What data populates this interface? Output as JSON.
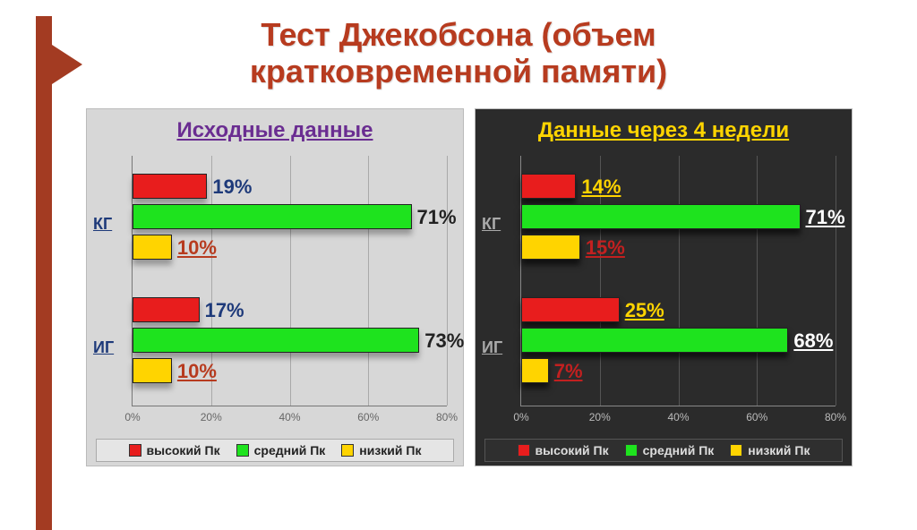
{
  "title_line1": "Тест Джекобсона (объем",
  "title_line2": "кратковременной памяти)",
  "accent_color": "#a33b22",
  "xaxis": {
    "min": 0,
    "max": 80,
    "step": 20,
    "ticks": [
      "0%",
      "20%",
      "40%",
      "60%",
      "80%"
    ]
  },
  "series": {
    "high": {
      "label": "высокий Пк",
      "color": "#e81d1d"
    },
    "medium": {
      "label": "средний Пк",
      "color": "#1ee31e"
    },
    "low": {
      "label": "низкий Пк",
      "color": "#ffd400"
    }
  },
  "panels": [
    {
      "key": "initial",
      "title": "Исходные данные",
      "theme": "light",
      "categories": [
        {
          "label": "КГ",
          "bars": [
            {
              "series": "high",
              "value": 19,
              "label": "19%",
              "label_color": "#1e3a7a"
            },
            {
              "series": "medium",
              "value": 71,
              "label": "71%",
              "label_color": "#222222"
            },
            {
              "series": "low",
              "value": 10,
              "label": "10%",
              "label_color": "#b73b1f",
              "underline": true
            }
          ]
        },
        {
          "label": "ИГ",
          "bars": [
            {
              "series": "high",
              "value": 17,
              "label": "17%",
              "label_color": "#1e3a7a"
            },
            {
              "series": "medium",
              "value": 73,
              "label": "73%",
              "label_color": "#222222"
            },
            {
              "series": "low",
              "value": 10,
              "label": "10%",
              "label_color": "#b73b1f",
              "underline": true
            }
          ]
        }
      ]
    },
    {
      "key": "after4w",
      "title": "Данные через 4 недели",
      "theme": "dark",
      "categories": [
        {
          "label": "КГ",
          "bars": [
            {
              "series": "high",
              "value": 14,
              "label": "14%",
              "label_color": "#ffd400",
              "underline": true
            },
            {
              "series": "medium",
              "value": 71,
              "label": "71%",
              "label_color": "#ffffff",
              "underline": true
            },
            {
              "series": "low",
              "value": 15,
              "label": "15%",
              "label_color": "#c22020",
              "underline": true
            }
          ]
        },
        {
          "label": "ИГ",
          "bars": [
            {
              "series": "high",
              "value": 25,
              "label": "25%",
              "label_color": "#ffd400",
              "underline": true
            },
            {
              "series": "medium",
              "value": 68,
              "label": "68%",
              "label_color": "#ffffff",
              "underline": true
            },
            {
              "series": "low",
              "value": 7,
              "label": "7%",
              "label_color": "#c22020",
              "underline": true
            }
          ]
        }
      ]
    }
  ]
}
